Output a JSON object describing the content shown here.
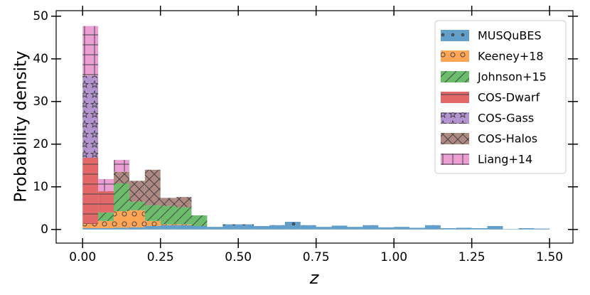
{
  "chart_data": {
    "type": "stacked_histogram",
    "xlabel": "z",
    "ylabel": "Probability density",
    "bins": [
      0,
      0.05,
      0.1,
      0.15,
      0.2,
      0.25,
      0.3,
      0.35,
      0.4,
      0.45,
      0.5,
      0.55,
      0.6,
      0.65,
      0.7,
      0.75,
      0.8,
      0.85,
      0.9,
      0.95,
      1.0,
      1.05,
      1.1,
      1.15,
      1.2,
      1.25,
      1.3,
      1.35,
      1.4,
      1.45,
      1.5
    ],
    "series": [
      {
        "name": "MUSQuBES",
        "color": "#1f77b4",
        "hatch": ".",
        "values": [
          0.3,
          0.3,
          0.4,
          0.5,
          0.8,
          1.0,
          1.0,
          0.8,
          0.6,
          1.2,
          1.2,
          0.8,
          1.0,
          1.8,
          1.0,
          0.6,
          0.9,
          0.6,
          1.0,
          0.5,
          0.6,
          0.4,
          1.0,
          0.3,
          0.4,
          0.3,
          0.8,
          0.1,
          0.3,
          0.2
        ]
      },
      {
        "name": "Keeney+18",
        "color": "#ff7f0e",
        "hatch": "o",
        "values": [
          1.0,
          1.7,
          3.9,
          4.0,
          1.2,
          0.2,
          0.2,
          0,
          0,
          0,
          0,
          0,
          0,
          0,
          0,
          0,
          0,
          0,
          0,
          0,
          0,
          0,
          0,
          0,
          0,
          0,
          0,
          0,
          0,
          0
        ]
      },
      {
        "name": "Johnson+15",
        "color": "#2ca02c",
        "hatch": "/",
        "values": [
          0,
          2.0,
          6.5,
          2.0,
          3.7,
          4.3,
          4.0,
          2.5,
          0,
          0,
          0,
          0,
          0,
          0,
          0,
          0,
          0,
          0,
          0,
          0,
          0,
          0,
          0,
          0,
          0,
          0,
          0,
          0,
          0,
          0
        ]
      },
      {
        "name": "COS-Dwarf",
        "color": "#d62728",
        "hatch": "-",
        "values": [
          15.5,
          5.0,
          0,
          0,
          0,
          0,
          0,
          0,
          0,
          0,
          0,
          0,
          0,
          0,
          0,
          0,
          0,
          0,
          0,
          0,
          0,
          0,
          0,
          0,
          0,
          0,
          0,
          0,
          0,
          0
        ]
      },
      {
        "name": "COS-Gass",
        "color": "#9467bd",
        "hatch": "*",
        "values": [
          19.2,
          0,
          0,
          0,
          0,
          0,
          0,
          0,
          0,
          0,
          0,
          0,
          0,
          0,
          0,
          0,
          0,
          0,
          0,
          0,
          0,
          0,
          0,
          0,
          0,
          0,
          0,
          0,
          0,
          0
        ]
      },
      {
        "name": "COS-Halos",
        "color": "#8c564b",
        "hatch": "x",
        "values": [
          0,
          0,
          2.7,
          4.9,
          8.3,
          1.9,
          2.4,
          0,
          0,
          0,
          0,
          0,
          0,
          0,
          0,
          0,
          0,
          0,
          0,
          0,
          0,
          0,
          0,
          0,
          0,
          0,
          0,
          0,
          0,
          0
        ]
      },
      {
        "name": "Liang+14",
        "color": "#e377c2",
        "hatch": "+",
        "values": [
          11.7,
          2.8,
          2.8,
          0,
          0,
          0,
          0,
          0,
          0,
          0,
          0,
          0,
          0,
          0,
          0,
          0,
          0,
          0,
          0,
          0,
          0,
          0,
          0,
          0,
          0,
          0,
          0,
          0,
          0,
          0
        ]
      }
    ],
    "xlim": [
      -0.085,
      1.575
    ],
    "ylim": [
      -3.2,
      51.3
    ],
    "xticks": [
      {
        "value": 0,
        "label": "0.00"
      },
      {
        "value": 0.25,
        "label": "0.25"
      },
      {
        "value": 0.5,
        "label": "0.50"
      },
      {
        "value": 0.75,
        "label": "0.75"
      },
      {
        "value": 1.0,
        "label": "1.00"
      },
      {
        "value": 1.25,
        "label": "1.25"
      },
      {
        "value": 1.5,
        "label": "1.50"
      }
    ],
    "yticks": [
      0,
      10,
      20,
      30,
      40,
      50
    ],
    "legend": "upper right"
  }
}
